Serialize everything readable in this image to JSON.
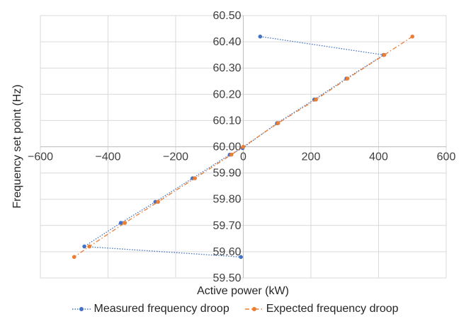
{
  "chart_data": {
    "type": "scatter",
    "xlabel": "Active power (kW)",
    "ylabel": "Frequency set point (Hz)",
    "xlim": [
      -600,
      600
    ],
    "ylim": [
      59.5,
      60.5
    ],
    "x_ticks": [
      "−600",
      "−400",
      "−200",
      "0",
      "200",
      "400",
      "600"
    ],
    "x_tick_values": [
      -600,
      -400,
      -200,
      0,
      200,
      400,
      600
    ],
    "y_ticks": [
      "59.50",
      "59.60",
      "59.70",
      "59.80",
      "59.90",
      "60.00",
      "60.10",
      "60.20",
      "60.30",
      "60.40",
      "60.50"
    ],
    "y_tick_values": [
      59.5,
      59.6,
      59.7,
      59.8,
      59.9,
      60.0,
      60.1,
      60.2,
      60.3,
      60.4,
      60.5
    ],
    "grid": true,
    "legend_position": "bottom",
    "series": [
      {
        "name": "Measured frequency droop",
        "color": "#4472C4",
        "line_style": "dotted",
        "points": [
          {
            "x": 50,
            "y": 60.42
          },
          {
            "x": 415,
            "y": 60.35
          },
          {
            "x": 305,
            "y": 60.26
          },
          {
            "x": 210,
            "y": 60.18
          },
          {
            "x": 100,
            "y": 60.09
          },
          {
            "x": -2,
            "y": 59.995
          },
          {
            "x": -40,
            "y": 59.97
          },
          {
            "x": -150,
            "y": 59.88
          },
          {
            "x": -260,
            "y": 59.79
          },
          {
            "x": -362,
            "y": 59.71
          },
          {
            "x": -470,
            "y": 59.62
          },
          {
            "x": -7,
            "y": 59.58
          }
        ]
      },
      {
        "name": "Expected frequency droop",
        "color": "#ED7D31",
        "line_style": "dash-dot",
        "points": [
          {
            "x": 500,
            "y": 60.42
          },
          {
            "x": 417,
            "y": 60.35
          },
          {
            "x": 308,
            "y": 60.26
          },
          {
            "x": 215,
            "y": 60.18
          },
          {
            "x": 103,
            "y": 60.09
          },
          {
            "x": 0,
            "y": 60.0
          },
          {
            "x": -35,
            "y": 59.97
          },
          {
            "x": -143,
            "y": 59.88
          },
          {
            "x": -252,
            "y": 59.79
          },
          {
            "x": -350,
            "y": 59.71
          },
          {
            "x": -455,
            "y": 59.62
          },
          {
            "x": -500,
            "y": 59.58
          }
        ]
      }
    ]
  }
}
